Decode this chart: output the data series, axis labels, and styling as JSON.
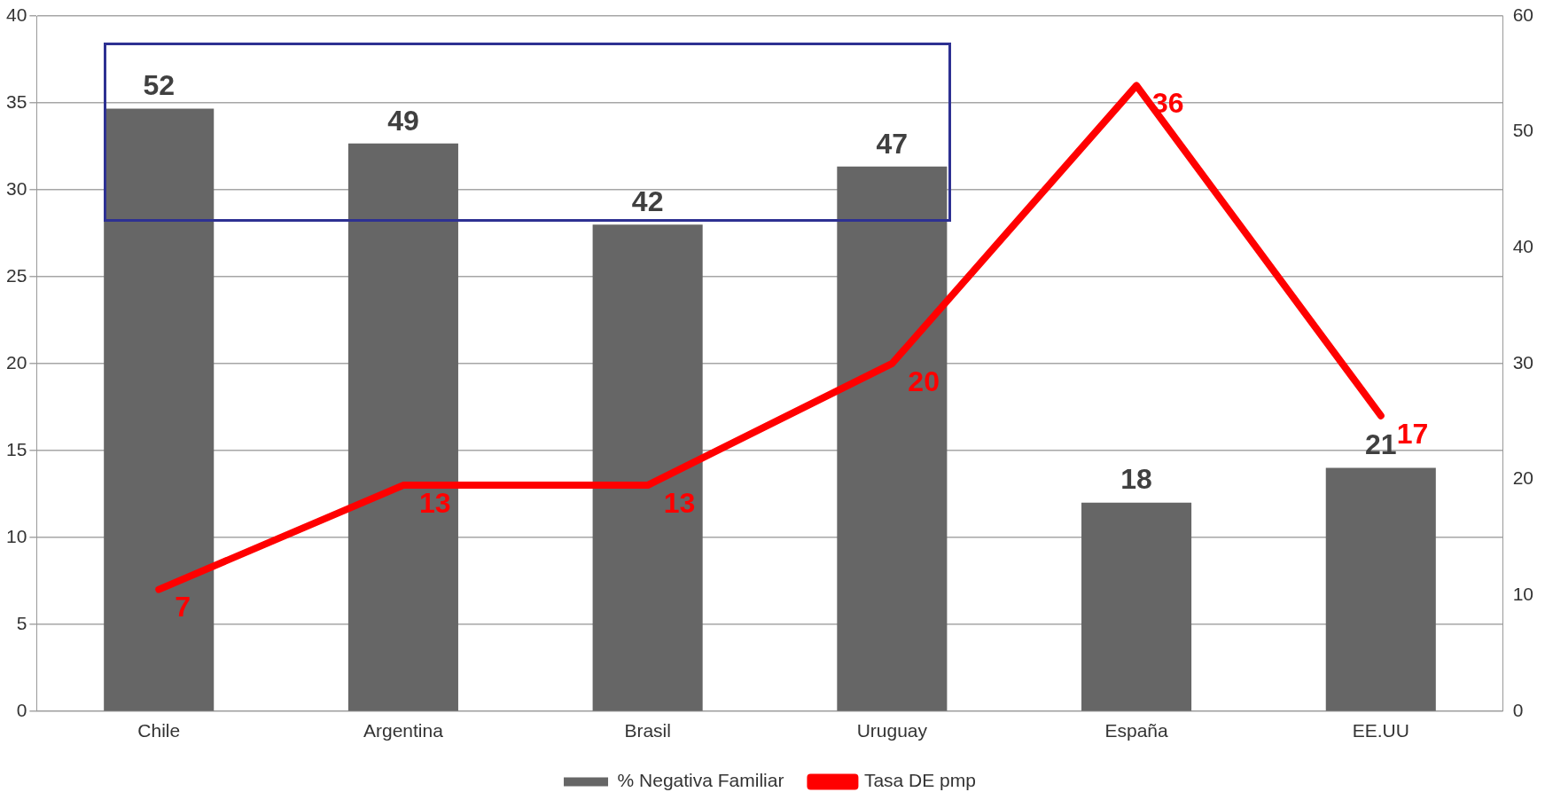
{
  "chart_data": {
    "type": "bar",
    "categories": [
      "Chile",
      "Argentina",
      "Brasil",
      "Uruguay",
      "España",
      "EE.UU"
    ],
    "series": [
      {
        "name": "% Negativa Familiar",
        "axis": "y2",
        "color": "#666666",
        "values": [
          52,
          49,
          42,
          47,
          18,
          21
        ]
      },
      {
        "name": "Tasa DE pmp",
        "type": "line",
        "color": "#ff0000",
        "values": [
          7,
          13,
          13,
          20,
          36,
          17
        ]
      }
    ],
    "ylim": [
      0,
      40
    ],
    "yticks": [
      0,
      5,
      10,
      15,
      20,
      25,
      30,
      35,
      40
    ],
    "y2lim": [
      0,
      60
    ],
    "y2ticks": [
      0,
      10,
      20,
      30,
      40,
      50,
      60
    ],
    "grid": "y",
    "legend": "bottom",
    "data_labels": true,
    "marker": "none",
    "line_style": "solid"
  }
}
